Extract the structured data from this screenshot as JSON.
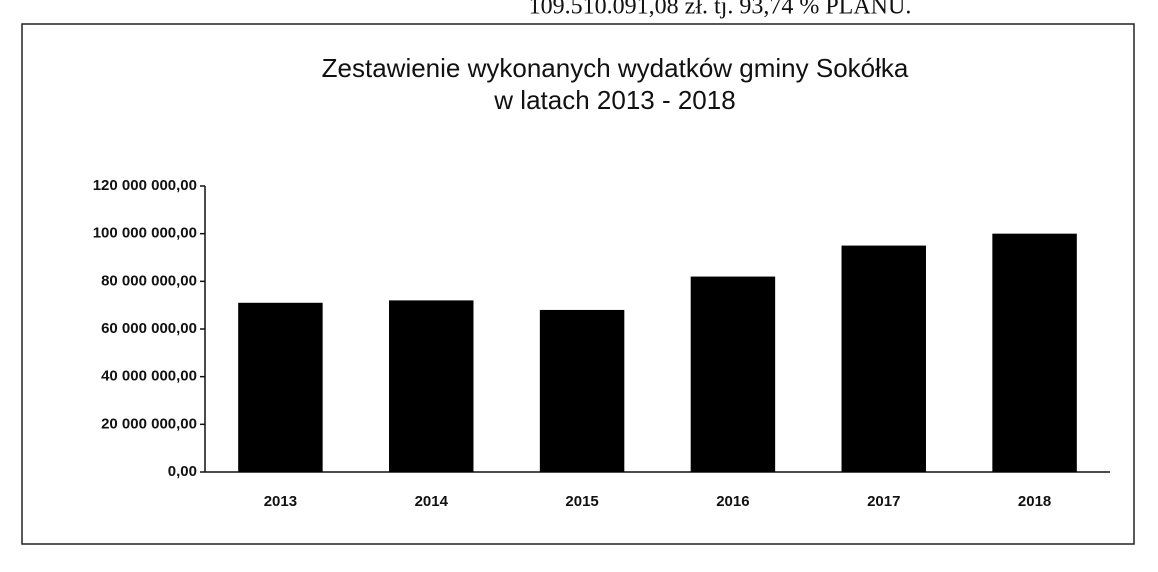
{
  "header_text": "109.510.091,08 zł. tj. 93,74 % PLANU.",
  "chart_data": {
    "type": "bar",
    "title": "Zestawienie wykonanych wydatków gminy Sokółka",
    "subtitle": "w latach 2013 - 2018",
    "categories": [
      "2013",
      "2014",
      "2015",
      "2016",
      "2017",
      "2018"
    ],
    "values": [
      71000000,
      72000000,
      68000000,
      82000000,
      95000000,
      100000000
    ],
    "color": "#000000",
    "ylim": [
      0,
      120000000
    ],
    "yticks": [
      {
        "value": 0,
        "label": "0,00"
      },
      {
        "value": 20000000,
        "label": "20 000 000,00"
      },
      {
        "value": 40000000,
        "label": "40 000 000,00"
      },
      {
        "value": 60000000,
        "label": "60 000 000,00"
      },
      {
        "value": 80000000,
        "label": "80 000 000,00"
      },
      {
        "value": 100000000,
        "label": "100 000 000,00"
      },
      {
        "value": 120000000,
        "label": "120 000 000,00"
      }
    ],
    "grid": false
  }
}
